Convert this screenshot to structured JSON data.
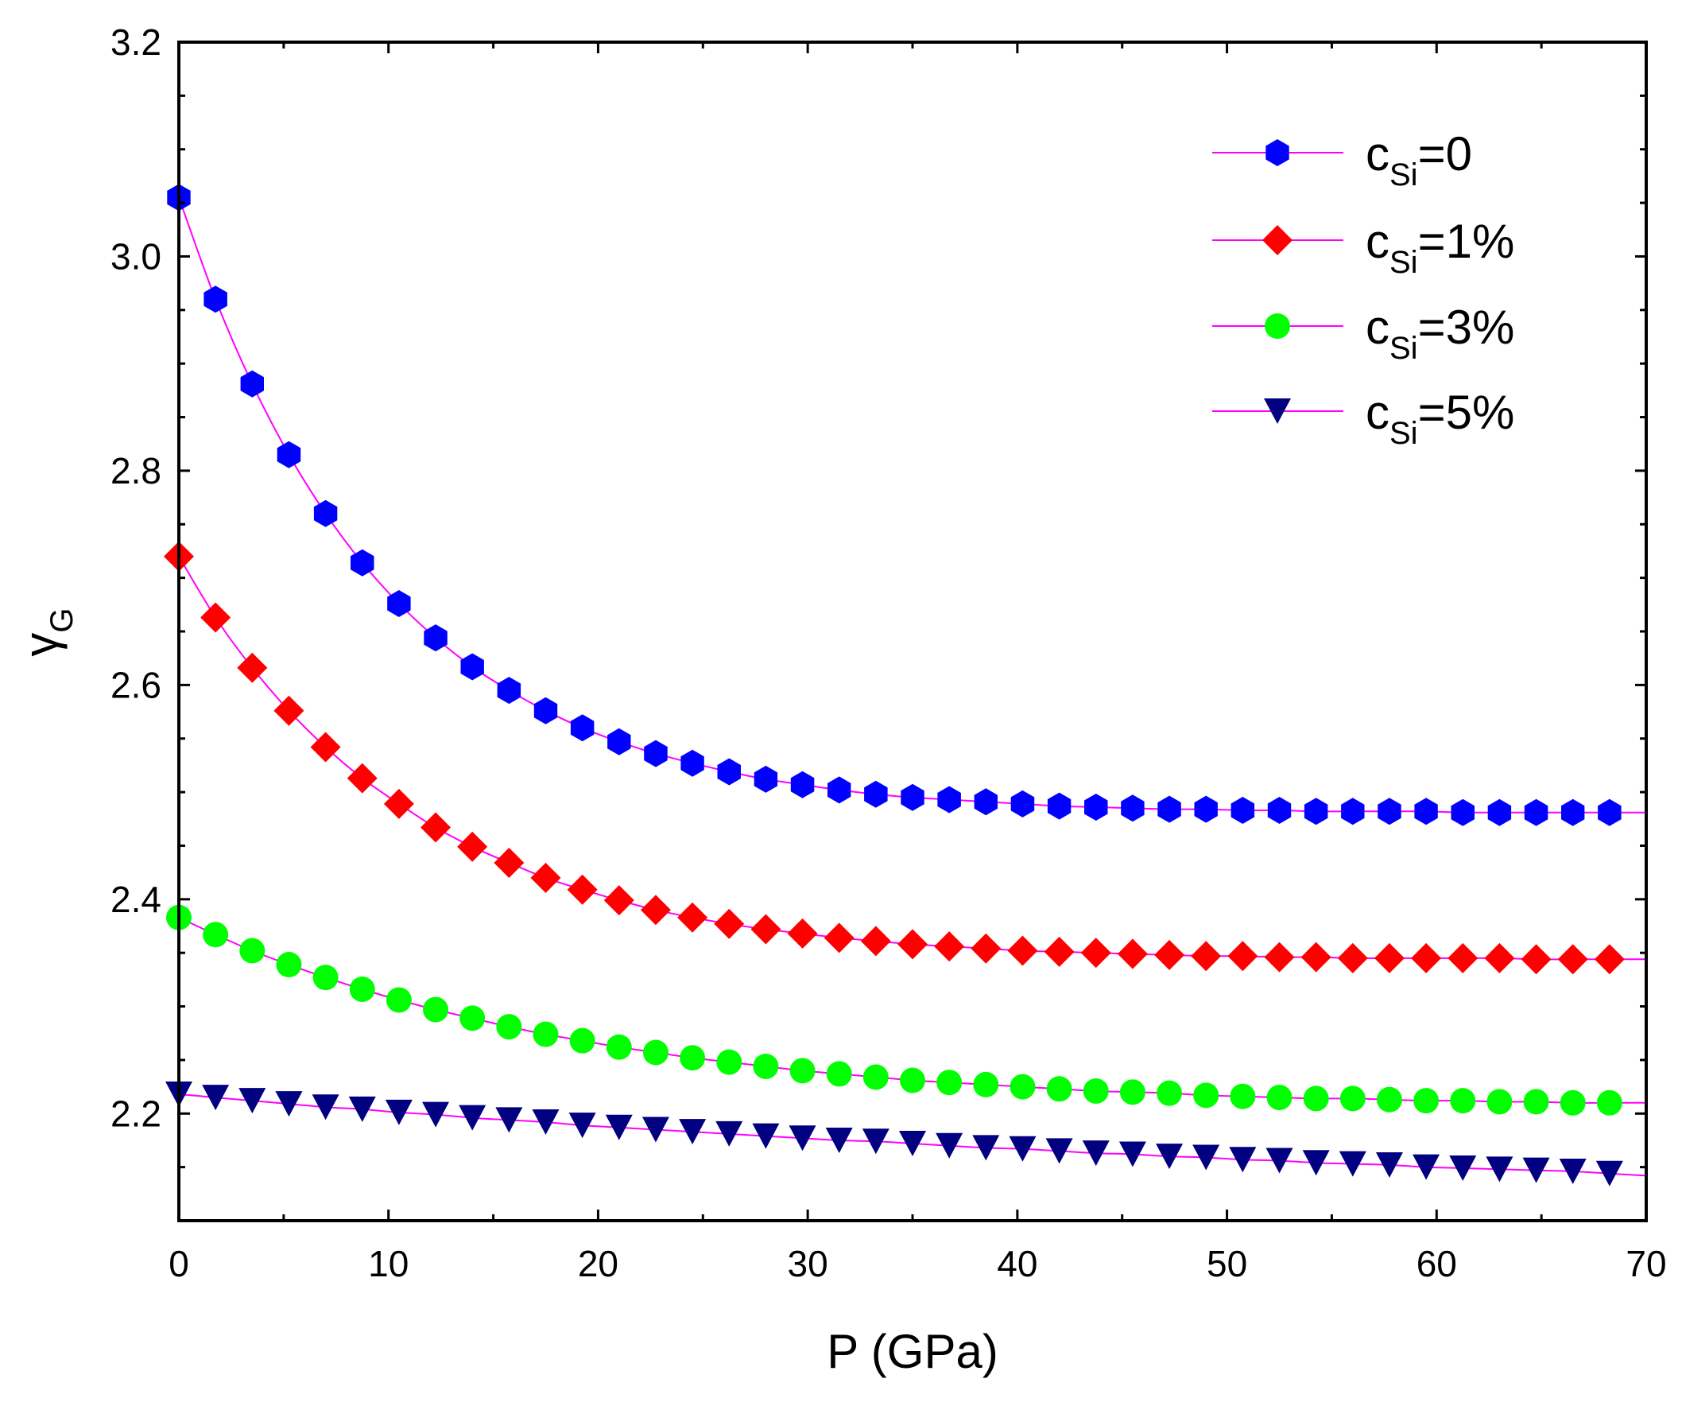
{
  "chart_data": {
    "type": "line",
    "xlabel": "P (GPa)",
    "ylabel": {
      "base": "γ",
      "sub": "G"
    },
    "xlim": [
      0,
      70
    ],
    "ylim": [
      2.1,
      3.2
    ],
    "xticks": [
      0,
      10,
      20,
      30,
      40,
      50,
      60,
      70
    ],
    "xtick_labels": [
      "0",
      "10",
      "20",
      "30",
      "40",
      "50",
      "60",
      "70"
    ],
    "yticks": [
      2.2,
      2.4,
      2.6,
      2.8,
      3.0,
      3.2
    ],
    "ytick_labels": [
      "2.2",
      "2.4",
      "2.6",
      "2.8",
      "3.0",
      "3.2"
    ],
    "x_minor_step": 5,
    "y_minor_step": 0.05,
    "grid": false,
    "legend_position": "top-right",
    "fit_line_color": "#ff00ff",
    "x": [
      0,
      1.75,
      3.5,
      5.25,
      7.0,
      8.75,
      10.5,
      12.25,
      14.0,
      15.75,
      17.5,
      19.25,
      21.0,
      22.75,
      24.5,
      26.25,
      28.0,
      29.75,
      31.5,
      33.25,
      35.0,
      36.75,
      38.5,
      40.25,
      42.0,
      43.75,
      45.5,
      47.25,
      49.0,
      50.75,
      52.5,
      54.25,
      56.0,
      57.75,
      59.5,
      61.25,
      63.0,
      64.75,
      66.5,
      68.25
    ],
    "series": [
      {
        "name": "c_Si=0",
        "label_base": "c",
        "label_sub": "Si",
        "label_tail": "=0",
        "color": "#0000ff",
        "marker": "hexagon",
        "values": [
          3.055,
          2.96,
          2.881,
          2.815,
          2.76,
          2.714,
          2.676,
          2.644,
          2.617,
          2.595,
          2.576,
          2.56,
          2.547,
          2.536,
          2.527,
          2.519,
          2.512,
          2.507,
          2.502,
          2.498,
          2.495,
          2.493,
          2.491,
          2.489,
          2.487,
          2.486,
          2.485,
          2.484,
          2.484,
          2.483,
          2.483,
          2.482,
          2.482,
          2.482,
          2.482,
          2.481,
          2.481,
          2.481,
          2.481,
          2.481
        ]
      },
      {
        "name": "c_Si=1%",
        "label_base": "c",
        "label_sub": "Si",
        "label_tail": "=1%",
        "color": "#ff0000",
        "marker": "diamond",
        "values": [
          2.72,
          2.663,
          2.616,
          2.576,
          2.542,
          2.513,
          2.489,
          2.467,
          2.449,
          2.434,
          2.42,
          2.409,
          2.399,
          2.39,
          2.383,
          2.377,
          2.372,
          2.368,
          2.364,
          2.361,
          2.358,
          2.356,
          2.354,
          2.352,
          2.351,
          2.35,
          2.349,
          2.348,
          2.347,
          2.347,
          2.346,
          2.346,
          2.345,
          2.345,
          2.345,
          2.345,
          2.345,
          2.344,
          2.344,
          2.344
        ]
      },
      {
        "name": "c_Si=3%",
        "label_base": "c",
        "label_sub": "Si",
        "label_tail": "=3%",
        "color": "#00ff00",
        "marker": "circle",
        "values": [
          2.383,
          2.367,
          2.352,
          2.339,
          2.327,
          2.316,
          2.306,
          2.297,
          2.289,
          2.281,
          2.274,
          2.268,
          2.262,
          2.257,
          2.252,
          2.248,
          2.244,
          2.24,
          2.237,
          2.234,
          2.231,
          2.229,
          2.227,
          2.225,
          2.223,
          2.221,
          2.22,
          2.219,
          2.217,
          2.216,
          2.215,
          2.214,
          2.214,
          2.213,
          2.212,
          2.212,
          2.211,
          2.211,
          2.21,
          2.21
        ]
      },
      {
        "name": "c_Si=5%",
        "label_base": "c",
        "label_sub": "Si",
        "label_tail": "=5%",
        "color": "#000080",
        "marker": "triangle-down",
        "values": [
          2.218,
          2.215,
          2.212,
          2.209,
          2.206,
          2.204,
          2.201,
          2.199,
          2.196,
          2.194,
          2.192,
          2.189,
          2.187,
          2.185,
          2.183,
          2.181,
          2.179,
          2.177,
          2.175,
          2.174,
          2.172,
          2.17,
          2.168,
          2.167,
          2.165,
          2.163,
          2.162,
          2.16,
          2.159,
          2.157,
          2.156,
          2.154,
          2.153,
          2.152,
          2.15,
          2.149,
          2.148,
          2.147,
          2.146,
          2.144
        ]
      }
    ]
  }
}
